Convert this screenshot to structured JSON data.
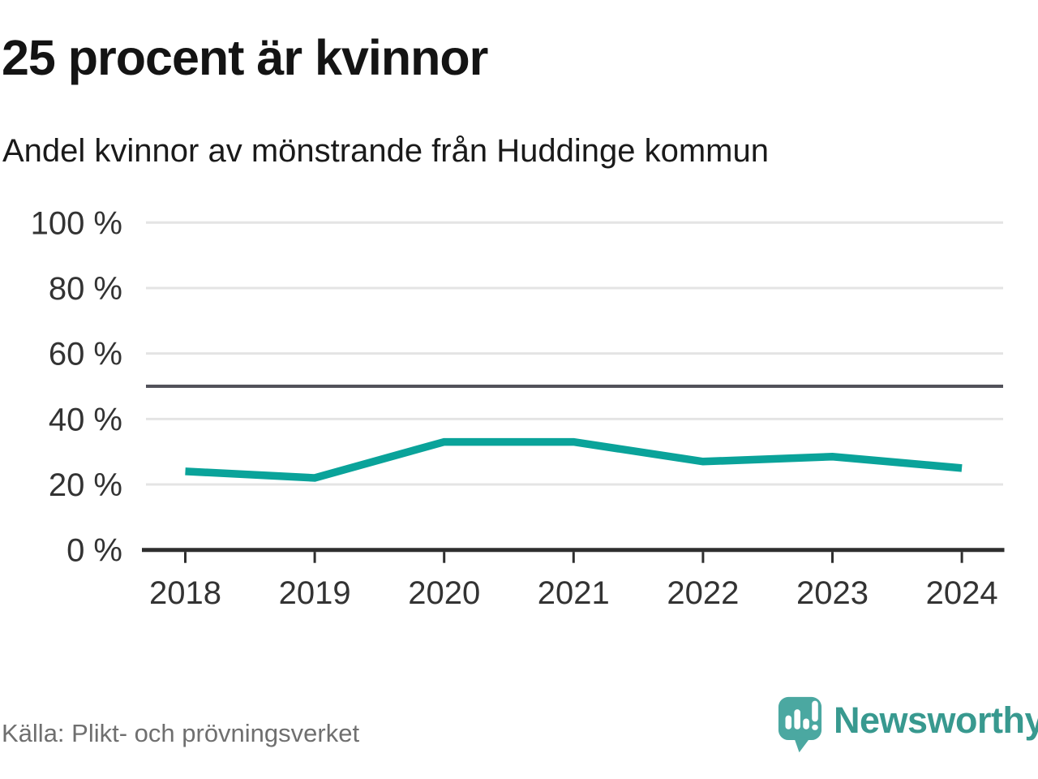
{
  "header": {
    "title": "25 procent är kvinnor",
    "subtitle": "Andel kvinnor av mönstrande från Huddinge kommun"
  },
  "chart_data": {
    "type": "line",
    "title": "25 procent är kvinnor",
    "subtitle": "Andel kvinnor av mönstrande från Huddinge kommun",
    "categories": [
      "2018",
      "2019",
      "2020",
      "2021",
      "2022",
      "2023",
      "2024"
    ],
    "series": [
      {
        "name": "Andel kvinnor av mönstrande",
        "values": [
          24,
          22,
          33,
          33,
          27,
          28.5,
          25
        ]
      }
    ],
    "unit": "%",
    "ylim": [
      0,
      100
    ],
    "yticks": [
      0,
      20,
      40,
      60,
      80,
      100
    ],
    "ytick_labels": [
      "0 %",
      "20 %",
      "40 %",
      "60 %",
      "80 %",
      "100 %"
    ],
    "reference_line": 50,
    "grid": true,
    "legend": false
  },
  "footer": {
    "source": "Källa: Plikt- och prövningsverket",
    "brand": "Newsworthy"
  },
  "colors": {
    "line": "#0aa39a",
    "grid": "#e4e4e4",
    "reference_line": "#52525a",
    "axis": "#2e2e2e",
    "tick_label": "#333333",
    "title": "#141414",
    "source_text": "#6f6f6f",
    "brand_text": "#38998f",
    "logo_bubble": "#4ba8a1"
  }
}
